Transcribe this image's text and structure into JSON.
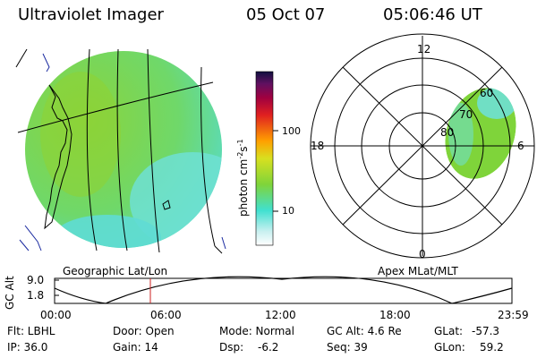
{
  "header": {
    "title": "Ultraviolet Imager",
    "date": "05 Oct 07",
    "time": "05:06:46 UT"
  },
  "colorbar": {
    "unit_label": "photon cm",
    "unit_exp1": "-2",
    "unit_s": "s",
    "unit_exp2": "-1",
    "ticks": [
      "100",
      "10"
    ]
  },
  "polar_plot": {
    "mlt_labels": [
      "12",
      "18",
      "6",
      "0"
    ],
    "lat_labels": [
      "60",
      "70",
      "80"
    ]
  },
  "panels": {
    "left_caption": "Geographic Lat/Lon",
    "right_caption": "Apex MLat/MLT"
  },
  "altitude_plot": {
    "ylabel": "GC Alt",
    "yticks": [
      "9.0",
      "1.8"
    ],
    "xticks": [
      "00:00",
      "06:00",
      "12:00",
      "18:00",
      "23:59"
    ]
  },
  "status": {
    "flt": "Flt: LBHL",
    "ip": "IP: 36.0",
    "door": "Door: Open",
    "gain": "Gain: 14",
    "mode": "Mode: Normal",
    "dsp": "Dsp:",
    "dsp_val": "-6.2",
    "gc_alt": "GC Alt: 4.6 Re",
    "seq": "Seq: 39",
    "glat": "GLat:",
    "glat_val": "-57.3",
    "glon": "GLon:",
    "glon_val": "59.2"
  },
  "colors": {
    "image_green": "#7fd43a",
    "image_cyan": "#5fe0d8",
    "marker_red": "#cc2222"
  }
}
